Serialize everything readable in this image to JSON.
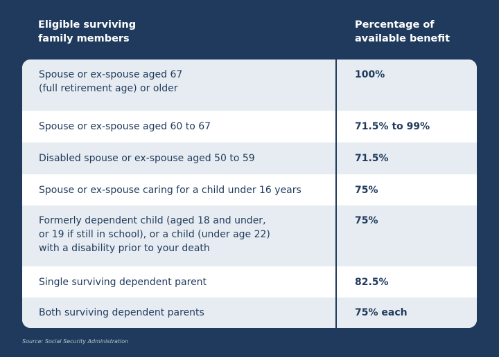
{
  "header": {
    "columns": [
      [
        "Eligible surviving",
        "family members"
      ],
      [
        "Percentage of",
        "available benefit"
      ]
    ]
  },
  "table": {
    "rows": [
      [
        [
          "Spouse or ex-spouse aged 67",
          "(full retirement age) or older"
        ],
        "100%"
      ],
      [
        [
          "Spouse or ex-spouse aged 60 to 67"
        ],
        "71.5% to 99%"
      ],
      [
        [
          "Disabled spouse or ex-spouse aged 50 to 59"
        ],
        "71.5%"
      ],
      [
        [
          "Spouse or ex-spouse caring for a child under 16 years"
        ],
        "75%"
      ],
      [
        [
          "Formerly dependent child (aged 18 and under,",
          "or 19 if still in school), or a child (under age 22)",
          "with a disability prior to your death"
        ],
        "75%"
      ],
      [
        [
          "Single surviving dependent parent"
        ],
        "82.5%"
      ],
      [
        [
          "Both surviving dependent parents"
        ],
        "75% each"
      ]
    ]
  },
  "footer": {
    "source": "Source: Social Security Administration"
  }
}
